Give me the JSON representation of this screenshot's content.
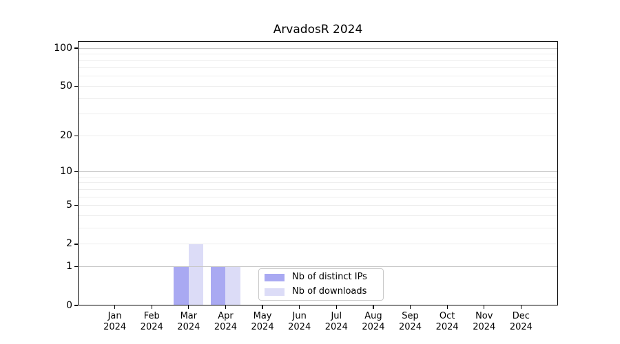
{
  "chart_data": {
    "type": "bar",
    "title": "ArvadosR 2024",
    "categories": [
      "Jan 2024",
      "Feb 2024",
      "Mar 2024",
      "Apr 2024",
      "May 2024",
      "Jun 2024",
      "Jul 2024",
      "Aug 2024",
      "Sep 2024",
      "Oct 2024",
      "Nov 2024",
      "Dec 2024"
    ],
    "series": [
      {
        "name": "Nb of distinct IPs",
        "color": "#a9a9f2",
        "values": [
          0,
          0,
          1,
          1,
          0,
          0,
          0,
          0,
          0,
          0,
          0,
          0
        ]
      },
      {
        "name": "Nb of downloads",
        "color": "#dcdcf7",
        "values": [
          0,
          0,
          2,
          1,
          0,
          0,
          0,
          0,
          0,
          0,
          0,
          0
        ]
      }
    ],
    "y_axis": {
      "scale": "log10(1+y)",
      "tick_labels": [
        0,
        1,
        2,
        5,
        10,
        20,
        50,
        100
      ],
      "max_value": 113.4,
      "major_gridlines": [
        1,
        10,
        100
      ],
      "minor_gridlines": [
        2,
        3,
        4,
        5,
        6,
        7,
        8,
        9,
        20,
        30,
        40,
        50,
        60,
        70,
        80,
        90
      ]
    },
    "legend": {
      "position": "lower center"
    },
    "colors": {
      "major_grid": "#c8c8c8",
      "minor_grid": "#ededed",
      "axis": "#000000",
      "background": "#ffffff"
    }
  }
}
